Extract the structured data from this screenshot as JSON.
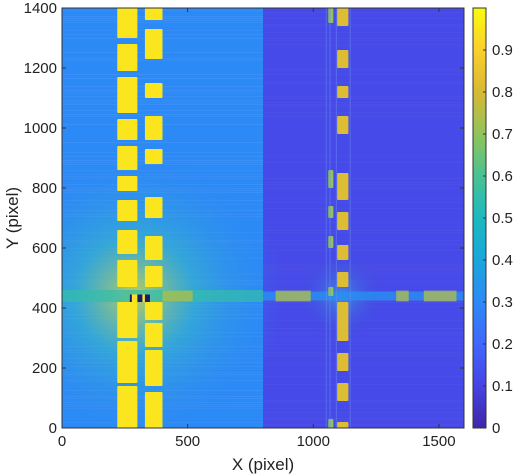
{
  "chart_data": {
    "type": "heatmap",
    "title": "",
    "xlabel": "X (pixel)",
    "ylabel": "Y (pixel)",
    "xlim": [
      0,
      1600
    ],
    "ylim": [
      0,
      1400
    ],
    "x_ticks": [
      0,
      500,
      1000,
      1500
    ],
    "y_ticks": [
      0,
      200,
      400,
      600,
      800,
      1000,
      1200,
      1400
    ],
    "colorbar": {
      "range": [
        0,
        1
      ],
      "ticks": [
        0,
        0.1,
        0.2,
        0.3,
        0.4,
        0.5,
        0.6,
        0.7,
        0.8,
        0.9
      ],
      "tick_labels": [
        "0",
        "0.1",
        "0.2",
        "0.3",
        "0.4",
        "0.5",
        "0.6",
        "0.7",
        "0.8",
        "0.9"
      ],
      "colormap": "parula"
    },
    "background_levels": [
      {
        "x_range": [
          0,
          800
        ],
        "value": 0.3
      },
      {
        "x_range": [
          800,
          1600
        ],
        "value": 0.12
      }
    ],
    "bright_columns": [
      {
        "x_range": [
          220,
          300
        ],
        "value": 0.95
      },
      {
        "x_range": [
          330,
          400
        ],
        "value": 0.95
      },
      {
        "x_range": [
          1060,
          1080
        ],
        "value": 0.75
      },
      {
        "x_range": [
          1100,
          1140
        ],
        "value": 0.8
      }
    ],
    "bright_row": {
      "y_range": [
        420,
        460
      ],
      "value": 0.7
    },
    "grid": false
  },
  "colors": {
    "low": "#3e26a8",
    "mid": "#2db5b8",
    "high": "#f9fb0e",
    "background_left": "#2a7ffb",
    "background_right": "#4040d8"
  }
}
